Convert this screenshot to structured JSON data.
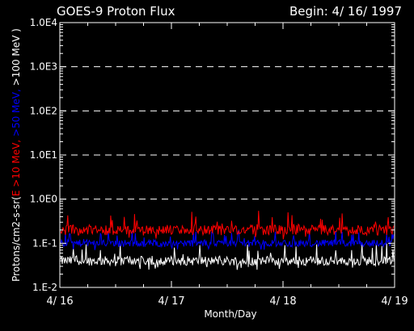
{
  "chart_data": {
    "type": "line",
    "title": "GOES-9 Proton Flux",
    "subtitle": "Begin: 4/ 16/ 1997",
    "xlabel": "Month/Day",
    "ylabel_parts": [
      {
        "text": "Protons/cm2-s-sr(",
        "color": "#ffffff"
      },
      {
        "text": "E >10 MeV, ",
        "color": "#ff0000"
      },
      {
        "text": ">50 MeV, ",
        "color": "#0000ff"
      },
      {
        "text": ">100 MeV )",
        "color": "#ffffff"
      }
    ],
    "y_scale": "log",
    "ylim": [
      0.01,
      10000
    ],
    "y_ticks": [
      {
        "value": 0.01,
        "label": "1.E-2"
      },
      {
        "value": 0.1,
        "label": "1.E-1"
      },
      {
        "value": 1,
        "label": "1.0E0"
      },
      {
        "value": 10,
        "label": "1.0E1"
      },
      {
        "value": 100,
        "label": "1.0E2"
      },
      {
        "value": 1000,
        "label": "1.0E3"
      },
      {
        "value": 10000,
        "label": "1.0E4"
      }
    ],
    "xlim": [
      "1997-04-16",
      "1997-04-19"
    ],
    "x_ticks": [
      {
        "value": "1997-04-16",
        "label": "4/ 16"
      },
      {
        "value": "1997-04-17",
        "label": "4/ 17"
      },
      {
        "value": "1997-04-18",
        "label": "4/ 18"
      },
      {
        "value": "1997-04-19",
        "label": "4/ 19"
      }
    ],
    "grid": "dashed horizontal lines at 1.0E0, 1.0E1, 1.0E2, 1.0E3",
    "background": "#000000",
    "series": [
      {
        "channel": "E >10 MeV",
        "color": "#ff0000",
        "baseline": 0.2,
        "min": 0.12,
        "max": 0.55,
        "style": "noisy background level"
      },
      {
        "channel": ">50 MeV",
        "color": "#0000ff",
        "baseline": 0.1,
        "min": 0.07,
        "max": 0.2,
        "style": "noisy background level"
      },
      {
        "channel": ">100 MeV",
        "color": "#ffffff",
        "baseline": 0.04,
        "min": 0.025,
        "max": 0.1,
        "style": "noisy background level"
      }
    ]
  }
}
